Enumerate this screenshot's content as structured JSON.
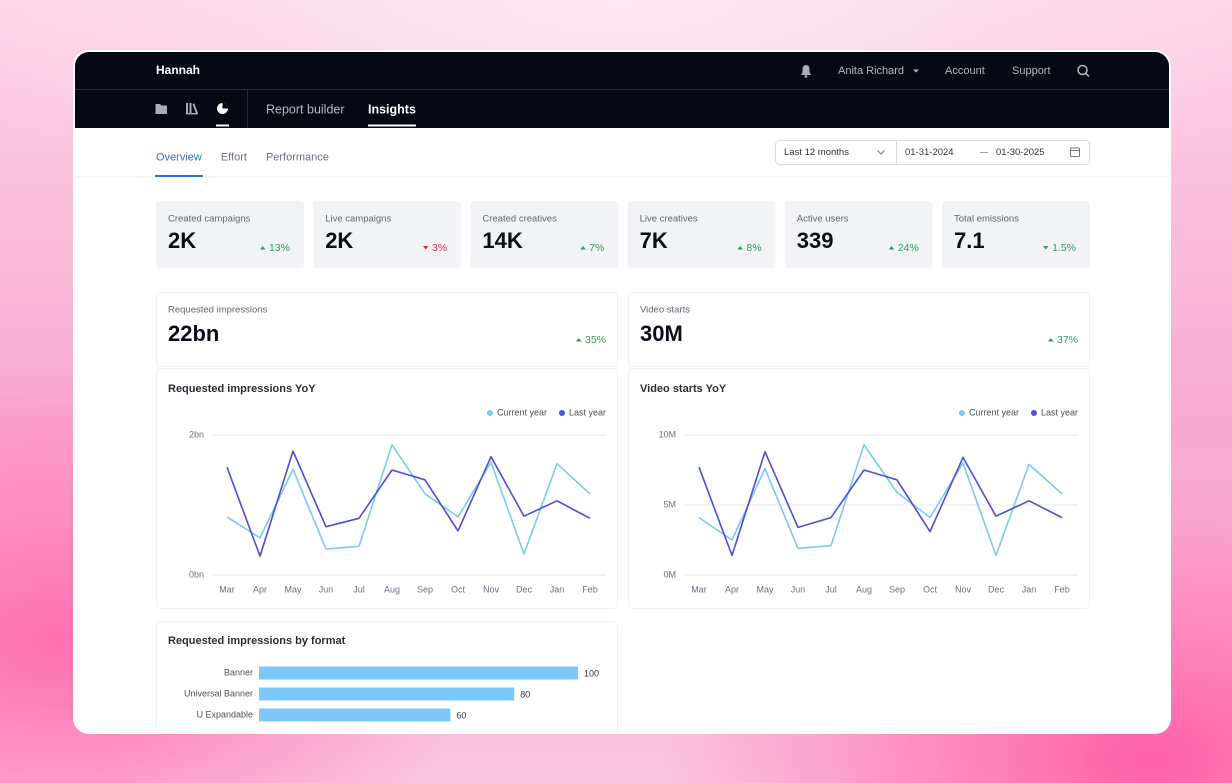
{
  "nav": {
    "brand": "Hannah",
    "user": "Anita Richard",
    "links": [
      "Account",
      "Support"
    ]
  },
  "subnav": {
    "items": [
      "Report builder",
      "Insights"
    ],
    "active": 1
  },
  "tabs": {
    "items": [
      "Overview",
      "Effort",
      "Performance"
    ],
    "active": 0
  },
  "date_filter": {
    "range": "Last 12 months",
    "start": "01-31-2024",
    "end": "01-30-2025"
  },
  "kpis": [
    {
      "label": "Created campaigns",
      "value": "2K",
      "change": "13%",
      "direction": "up",
      "color": "#2f9a5c"
    },
    {
      "label": "Live campaigns",
      "value": "2K",
      "change": "3%",
      "direction": "down",
      "color": "#d2313a"
    },
    {
      "label": "Created creatives",
      "value": "14K",
      "change": "7%",
      "direction": "up",
      "color": "#2f9a5c"
    },
    {
      "label": "Live creatives",
      "value": "7K",
      "change": "8%",
      "direction": "up",
      "color": "#2f9a5c"
    },
    {
      "label": "Active users",
      "value": "339",
      "change": "24%",
      "direction": "up",
      "color": "#2f9a5c"
    },
    {
      "label": "Total emissions",
      "value": "7.1",
      "change": "1.5%",
      "direction": "down",
      "color": "#2f9a5c"
    }
  ],
  "highlights": [
    {
      "label": "Requested impressions",
      "value": "22bn",
      "change": "35%",
      "direction": "up",
      "color": "#2f9a5c"
    },
    {
      "label": "Video starts",
      "value": "30M",
      "change": "37%",
      "direction": "up",
      "color": "#2f9a5c"
    }
  ],
  "chart_data": [
    {
      "type": "line",
      "title": "Requested impressions YoY",
      "categories": [
        "Mar",
        "Apr",
        "May",
        "Jun",
        "Jul",
        "Aug",
        "Sep",
        "Oct",
        "Nov",
        "Dec",
        "Jan",
        "Feb"
      ],
      "series": [
        {
          "name": "Current year",
          "color": "#7ccaf1",
          "values": [
            0.83,
            0.53,
            1.51,
            0.37,
            0.41,
            1.86,
            1.16,
            0.83,
            1.61,
            0.3,
            1.59,
            1.16
          ]
        },
        {
          "name": "Last year",
          "color": "#4a4fd4",
          "values": [
            1.54,
            0.27,
            1.77,
            0.69,
            0.81,
            1.5,
            1.36,
            0.63,
            1.69,
            0.84,
            1.06,
            0.81
          ]
        }
      ],
      "ylim": [
        0,
        2
      ],
      "yticks": [
        {
          "value": 0,
          "label": "0bn"
        },
        {
          "value": 2,
          "label": "2bn"
        }
      ],
      "grid": true,
      "legend": "top-right"
    },
    {
      "type": "line",
      "title": "Video starts YoY",
      "categories": [
        "Mar",
        "Apr",
        "May",
        "Jun",
        "Jul",
        "Aug",
        "Sep",
        "Oct",
        "Nov",
        "Dec",
        "Jan",
        "Feb"
      ],
      "series": [
        {
          "name": "Current year",
          "color": "#7ccaf1",
          "values": [
            4.1,
            2.5,
            7.6,
            1.9,
            2.1,
            9.3,
            5.9,
            4.1,
            8.0,
            1.4,
            7.9,
            5.8
          ]
        },
        {
          "name": "Last year",
          "color": "#4a4fd4",
          "values": [
            7.7,
            1.4,
            8.8,
            3.4,
            4.1,
            7.5,
            6.8,
            3.1,
            8.4,
            4.2,
            5.3,
            4.1
          ]
        }
      ],
      "ylim": [
        0,
        10
      ],
      "yticks": [
        {
          "value": 0,
          "label": "0M"
        },
        {
          "value": 5,
          "label": "5M"
        },
        {
          "value": 10,
          "label": "10M"
        }
      ],
      "grid": true,
      "legend": "top-right"
    },
    {
      "type": "bar",
      "orientation": "horizontal",
      "title": "Requested impressions by format",
      "categories": [
        "Banner",
        "Universal Banner",
        "U Expandable"
      ],
      "values": [
        100,
        80,
        60
      ],
      "color": "#7cc8f8",
      "xlim": [
        0,
        100
      ]
    }
  ]
}
